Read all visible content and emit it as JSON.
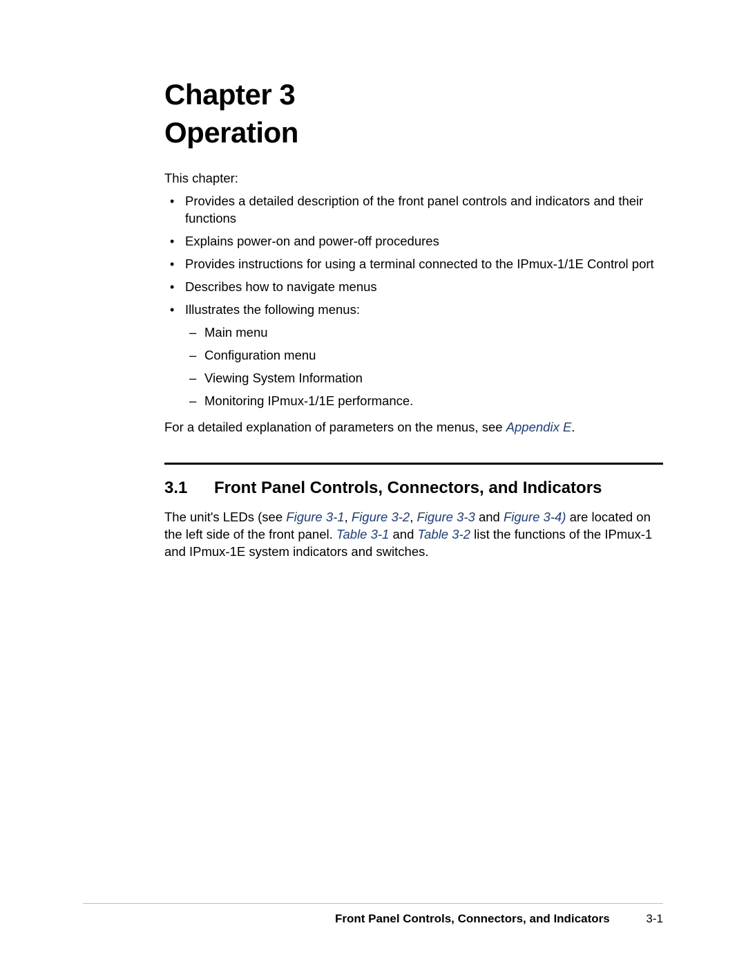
{
  "heading": {
    "line1": "Chapter 3",
    "line2": "Operation"
  },
  "intro": "This chapter:",
  "bullets": [
    "Provides a detailed description of the front panel controls and indicators and their functions",
    "Explains power-on and power-off procedures",
    "Provides instructions for using a terminal connected to the IPmux-1/1E Control port",
    "Describes how to navigate menus",
    "Illustrates the following menus:"
  ],
  "sub_bullets": [
    "Main menu",
    "Configuration menu",
    "Viewing System Information",
    "Monitoring IPmux-1/1E performance."
  ],
  "post_list": {
    "pre": "For a detailed explanation of parameters on the menus, see ",
    "link": "Appendix E",
    "post": "."
  },
  "section": {
    "number": "3.1",
    "title": "Front Panel Controls, Connectors, and Indicators",
    "body": {
      "p1_pre": "The unit's LEDs (see ",
      "fig1": "Figure 3-1",
      "sep1": ", ",
      "fig2": "Figure 3-2",
      "sep2": ", ",
      "fig3": "Figure 3-3",
      "and1": " and ",
      "fig4": "Figure 3-4)",
      "p1_mid": " are located on the left side of the front panel. ",
      "tab1": "Table 3-1",
      "and2": " and ",
      "tab2": "Table 3-2",
      "p1_post": " list the functions of the IPmux-1 and IPmux-1E system indicators and switches."
    }
  },
  "footer": {
    "title": "Front Panel Controls, Connectors, and Indicators",
    "page": "3-1"
  },
  "colors": {
    "text": "#000000",
    "link": "#1a3c8c",
    "background": "#ffffff",
    "footer_rule": "#bdbdbd"
  },
  "typography": {
    "heading_fontsize": 42,
    "heading_weight": 700,
    "body_fontsize": 18.5,
    "section_heading_fontsize": 24,
    "footer_fontsize": 17
  }
}
